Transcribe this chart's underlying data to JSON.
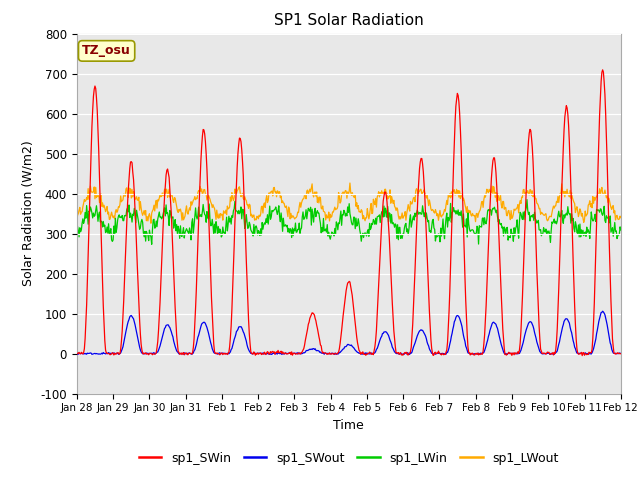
{
  "title": "SP1 Solar Radiation",
  "xlabel": "Time",
  "ylabel": "Solar Radiation (W/m2)",
  "ylim": [
    -100,
    800
  ],
  "xtick_labels": [
    "Jan 28",
    "Jan 29",
    "Jan 30",
    "Jan 31",
    "Feb 1",
    "Feb 2",
    "Feb 3",
    "Feb 4",
    "Feb 5",
    "Feb 6",
    "Feb 7",
    "Feb 8",
    "Feb 9",
    "Feb 10",
    "Feb 11",
    "Feb 12"
  ],
  "colors": {
    "sp1_SWin": "#ff0000",
    "sp1_SWout": "#0000ee",
    "sp1_LWin": "#00cc00",
    "sp1_LWout": "#ffaa00"
  },
  "fig_bg_color": "#ffffff",
  "plot_bg_color": "#e8e8e8",
  "annotation_text": "TZ_osu",
  "annotation_bg": "#ffffcc",
  "annotation_border": "#999900",
  "legend_entries": [
    "sp1_SWin",
    "sp1_SWout",
    "sp1_LWin",
    "sp1_LWout"
  ],
  "sw_in_peaks": [
    670,
    480,
    460,
    560,
    540,
    5,
    100,
    180,
    405,
    490,
    650,
    490,
    560,
    620,
    710
  ],
  "sw_out_peaks": [
    0,
    95,
    72,
    78,
    68,
    0,
    12,
    22,
    55,
    60,
    95,
    78,
    80,
    88,
    105
  ],
  "n_days": 15
}
